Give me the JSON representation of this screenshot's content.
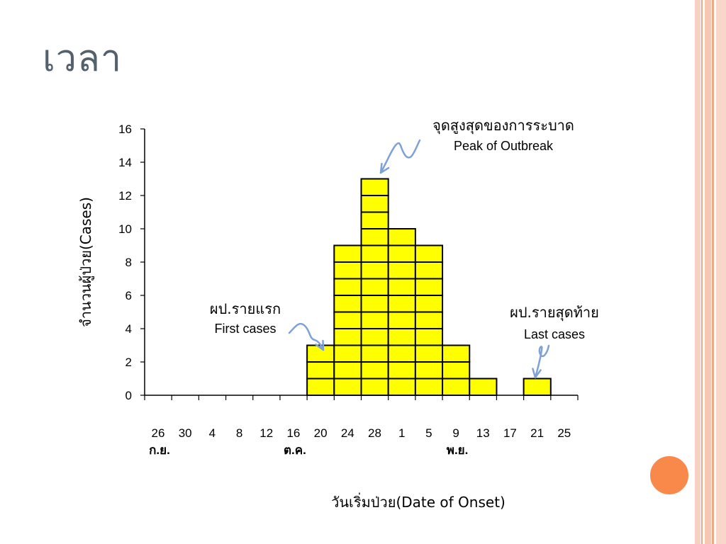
{
  "slide": {
    "title": "เวลา"
  },
  "colors": {
    "bar_fill": "#ffff00",
    "bar_stroke": "#000000",
    "arrow": "#7ea1d8",
    "accent_dot": "#f9894a",
    "title_color": "#53606d"
  },
  "chart_data": {
    "type": "bar",
    "categories": [
      "26",
      "30",
      "4",
      "8",
      "12",
      "16",
      "20",
      "24",
      "28",
      "1",
      "5",
      "9",
      "13",
      "17",
      "21",
      "25"
    ],
    "series": [
      {
        "values": [
          0,
          0,
          0,
          0,
          0,
          0,
          3,
          9,
          13,
          10,
          9,
          3,
          1,
          0,
          1,
          0
        ]
      }
    ],
    "ylim": [
      0,
      16
    ],
    "yticks": [
      0,
      2,
      4,
      6,
      8,
      10,
      12,
      14,
      16
    ],
    "month_labels": [
      {
        "label": "ก.ย.",
        "category_index": 0
      },
      {
        "label": "ต.ค.",
        "category_index": 5
      },
      {
        "label": "พ.ย.",
        "category_index": 11
      }
    ],
    "xlabel": "วันเริ่มป่วย(Date of Onset)",
    "ylabel": "จำนวนผู้ป่วย(Cases)",
    "annotations": [
      {
        "thai": "จุดสูงสุดของการระบาด",
        "english": "Peak of Outbreak",
        "target_category_index": 8
      },
      {
        "thai": "ผป.รายแรก",
        "english": "First cases",
        "target_category_index": 6
      },
      {
        "thai": "ผป.รายสุดท้าย",
        "english": "Last cases",
        "target_category_index": 14
      }
    ],
    "grid": false,
    "legend": "none"
  }
}
